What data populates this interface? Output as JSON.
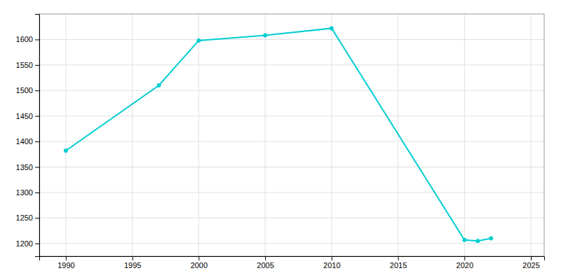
{
  "chart_data": {
    "type": "line",
    "x": [
      1990,
      1997,
      2000,
      2005,
      2010,
      2020,
      2021,
      2022
    ],
    "values": [
      1382,
      1510,
      1598,
      1608,
      1622,
      1207,
      1205,
      1210
    ],
    "color": "#00CED1",
    "marker": "circle",
    "xlim": [
      1988,
      2026
    ],
    "ylim": [
      1175,
      1650
    ],
    "xticks": [
      1990,
      1995,
      2000,
      2005,
      2010,
      2015,
      2020,
      2025
    ],
    "yticks": [
      1200,
      1250,
      1300,
      1350,
      1400,
      1450,
      1500,
      1550,
      1600
    ],
    "grid": true
  }
}
